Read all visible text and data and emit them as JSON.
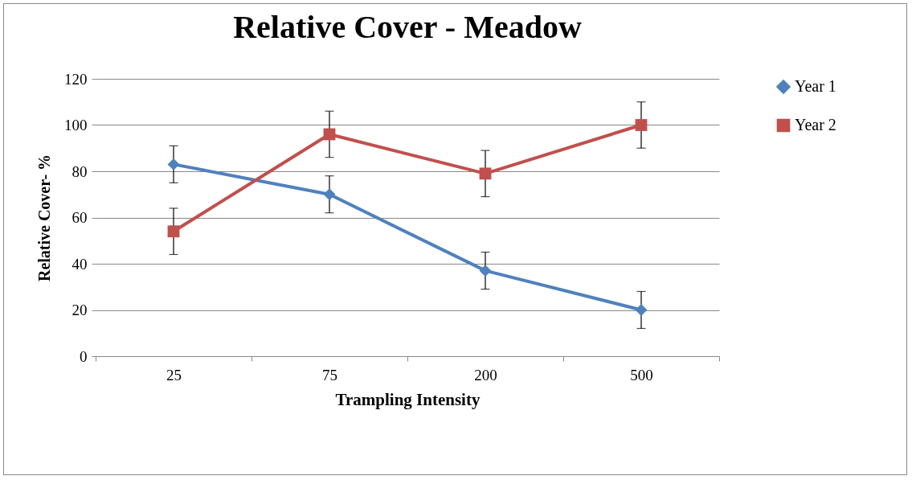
{
  "chart_data": {
    "type": "line",
    "title": "Relative Cover - Meadow",
    "xlabel": "Trampling Intensity",
    "ylabel": "Relative Cover- %",
    "categories": [
      "25",
      "75",
      "200",
      "500"
    ],
    "series": [
      {
        "name": "Year 1",
        "color": "#4f81bd",
        "marker": "diamond",
        "values": [
          83,
          70,
          37,
          20
        ],
        "errors": [
          8,
          8,
          8,
          8
        ]
      },
      {
        "name": "Year 2",
        "color": "#c0504d",
        "marker": "square",
        "values": [
          54,
          96,
          79,
          100
        ],
        "errors": [
          10,
          10,
          10,
          10
        ]
      }
    ],
    "ylim": [
      0,
      120
    ],
    "yticks": [
      0,
      20,
      40,
      60,
      80,
      100,
      120
    ],
    "grid": "y",
    "legend": "right"
  }
}
